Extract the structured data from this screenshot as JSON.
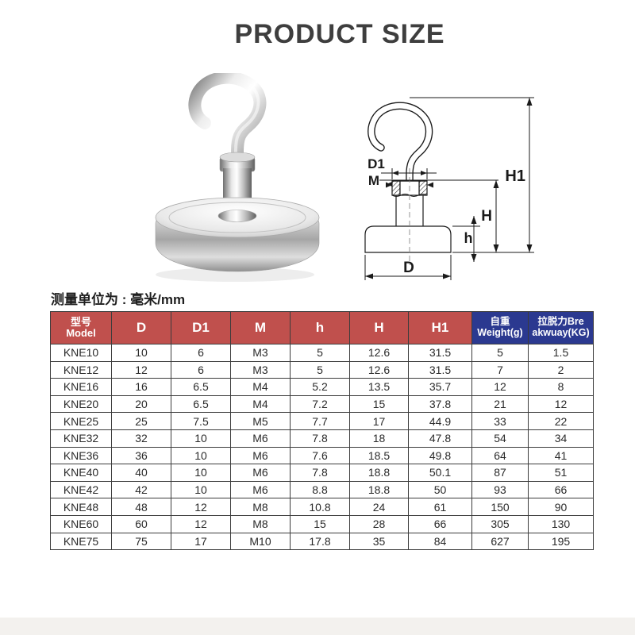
{
  "page": {
    "title": "PRODUCT SIZE",
    "unit_note": "测量单位为 : 毫米/mm"
  },
  "colors": {
    "header_red": "#c0504d",
    "header_blue": "#2b3990",
    "table_border": "#3c3c3c",
    "title_text": "#3e3e3e"
  },
  "diagram": {
    "labels": {
      "d1": "D1",
      "m": "M",
      "h1": "H1",
      "h_cap": "H",
      "h_low": "h",
      "d": "D"
    }
  },
  "table": {
    "columns": [
      {
        "lines": [
          "型号",
          "Model"
        ]
      },
      {
        "lines": [
          "D"
        ]
      },
      {
        "lines": [
          "D1"
        ]
      },
      {
        "lines": [
          "M"
        ]
      },
      {
        "lines": [
          "h"
        ]
      },
      {
        "lines": [
          "H"
        ]
      },
      {
        "lines": [
          "H1"
        ]
      },
      {
        "lines": [
          "自重",
          "Weight(g)"
        ]
      },
      {
        "lines": [
          "拉脱力Bre",
          "akwuay(KG)"
        ]
      }
    ],
    "rows": [
      [
        "KNE10",
        "10",
        "6",
        "M3",
        "5",
        "12.6",
        "31.5",
        "5",
        "1.5"
      ],
      [
        "KNE12",
        "12",
        "6",
        "M3",
        "5",
        "12.6",
        "31.5",
        "7",
        "2"
      ],
      [
        "KNE16",
        "16",
        "6.5",
        "M4",
        "5.2",
        "13.5",
        "35.7",
        "12",
        "8"
      ],
      [
        "KNE20",
        "20",
        "6.5",
        "M4",
        "7.2",
        "15",
        "37.8",
        "21",
        "12"
      ],
      [
        "KNE25",
        "25",
        "7.5",
        "M5",
        "7.7",
        "17",
        "44.9",
        "33",
        "22"
      ],
      [
        "KNE32",
        "32",
        "10",
        "M6",
        "7.8",
        "18",
        "47.8",
        "54",
        "34"
      ],
      [
        "KNE36",
        "36",
        "10",
        "M6",
        "7.6",
        "18.5",
        "49.8",
        "64",
        "41"
      ],
      [
        "KNE40",
        "40",
        "10",
        "M6",
        "7.8",
        "18.8",
        "50.1",
        "87",
        "51"
      ],
      [
        "KNE42",
        "42",
        "10",
        "M6",
        "8.8",
        "18.8",
        "50",
        "93",
        "66"
      ],
      [
        "KNE48",
        "48",
        "12",
        "M8",
        "10.8",
        "24",
        "61",
        "150",
        "90"
      ],
      [
        "KNE60",
        "60",
        "12",
        "M8",
        "15",
        "28",
        "66",
        "305",
        "130"
      ],
      [
        "KNE75",
        "75",
        "17",
        "M10",
        "17.8",
        "35",
        "84",
        "627",
        "195"
      ]
    ]
  }
}
